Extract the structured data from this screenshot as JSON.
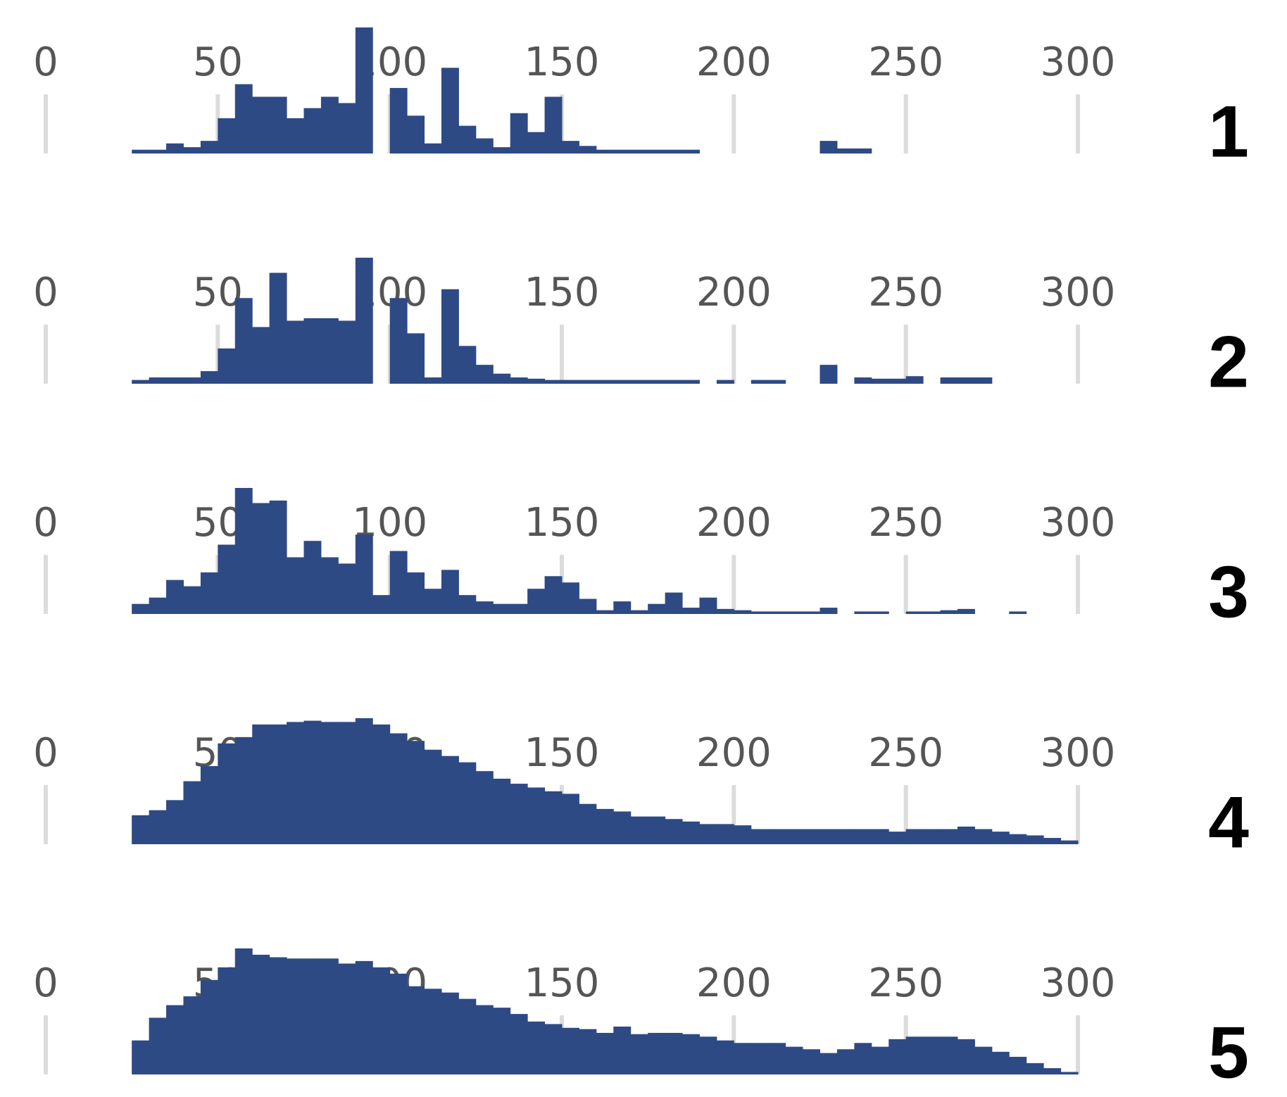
{
  "chart_data": [
    {
      "type": "histogram",
      "title": "1",
      "color": "#2e4a85",
      "grid": true,
      "bins": [
        25,
        30,
        35,
        40,
        45,
        50,
        55,
        60,
        65,
        70,
        75,
        80,
        85,
        90,
        95,
        100,
        105,
        110,
        115,
        120,
        125,
        130,
        135,
        140,
        145,
        150,
        155,
        160,
        165,
        170,
        175,
        180,
        185,
        190,
        195,
        200,
        205,
        210,
        215,
        220,
        225,
        230,
        235,
        240,
        245,
        250,
        255,
        260,
        265,
        270,
        275,
        280,
        285,
        290,
        295,
        300
      ],
      "values": [
        3,
        3,
        8,
        5,
        10,
        28,
        55,
        45,
        45,
        28,
        36,
        45,
        40,
        100,
        0,
        52,
        30,
        8,
        68,
        22,
        12,
        5,
        32,
        17,
        45,
        10,
        6,
        3,
        3,
        3,
        3,
        3,
        3,
        0,
        0,
        0,
        0,
        0,
        0,
        0,
        10,
        4,
        4,
        0,
        0,
        0,
        0,
        0,
        0,
        0,
        0,
        0,
        0,
        0,
        0
      ],
      "xlim": [
        0,
        300
      ],
      "xticks": [
        0,
        50,
        100,
        150,
        200,
        250,
        300
      ],
      "ylim": [
        0,
        100
      ]
    },
    {
      "type": "histogram",
      "title": "2",
      "color": "#2e4a85",
      "grid": true,
      "bins": [
        25,
        30,
        35,
        40,
        45,
        50,
        55,
        60,
        65,
        70,
        75,
        80,
        85,
        90,
        95,
        100,
        105,
        110,
        115,
        120,
        125,
        130,
        135,
        140,
        145,
        150,
        155,
        160,
        165,
        170,
        175,
        180,
        185,
        190,
        195,
        200,
        205,
        210,
        215,
        220,
        225,
        230,
        235,
        240,
        245,
        250,
        255,
        260,
        265,
        270,
        275,
        280,
        285,
        290,
        295,
        300
      ],
      "values": [
        3,
        5,
        5,
        5,
        10,
        28,
        68,
        45,
        88,
        50,
        52,
        52,
        50,
        100,
        0,
        68,
        40,
        5,
        75,
        30,
        15,
        8,
        5,
        4,
        3,
        3,
        3,
        3,
        3,
        3,
        3,
        3,
        3,
        0,
        3,
        0,
        3,
        3,
        0,
        0,
        15,
        0,
        5,
        4,
        4,
        6,
        0,
        5,
        5,
        5,
        0,
        0,
        0,
        0,
        0
      ],
      "xlim": [
        0,
        300
      ],
      "xticks": [
        0,
        50,
        100,
        150,
        200,
        250,
        300
      ],
      "ylim": [
        0,
        100
      ]
    },
    {
      "type": "histogram",
      "title": "3",
      "color": "#2e4a85",
      "grid": true,
      "bins": [
        25,
        30,
        35,
        40,
        45,
        50,
        55,
        60,
        65,
        70,
        75,
        80,
        85,
        90,
        95,
        100,
        105,
        110,
        115,
        120,
        125,
        130,
        135,
        140,
        145,
        150,
        155,
        160,
        165,
        170,
        175,
        180,
        185,
        190,
        195,
        200,
        205,
        210,
        215,
        220,
        225,
        230,
        235,
        240,
        245,
        250,
        255,
        260,
        265,
        270,
        275,
        280,
        285,
        290,
        295,
        300
      ],
      "values": [
        8,
        13,
        27,
        22,
        33,
        55,
        100,
        88,
        90,
        45,
        58,
        45,
        40,
        63,
        15,
        50,
        33,
        20,
        35,
        15,
        10,
        8,
        8,
        20,
        30,
        25,
        12,
        3,
        10,
        3,
        8,
        17,
        5,
        13,
        4,
        3,
        2,
        2,
        2,
        2,
        5,
        0,
        2,
        2,
        0,
        2,
        2,
        3,
        4,
        0,
        0,
        2,
        0,
        0,
        0
      ],
      "xlim": [
        0,
        300
      ],
      "xticks": [
        0,
        50,
        100,
        150,
        200,
        250,
        300
      ],
      "ylim": [
        0,
        100
      ]
    },
    {
      "type": "histogram",
      "title": "4",
      "color": "#2e4a85",
      "grid": true,
      "bins": [
        25,
        30,
        35,
        40,
        45,
        50,
        55,
        60,
        65,
        70,
        75,
        80,
        85,
        90,
        95,
        100,
        105,
        110,
        115,
        120,
        125,
        130,
        135,
        140,
        145,
        150,
        155,
        160,
        165,
        170,
        175,
        180,
        185,
        190,
        195,
        200,
        205,
        210,
        215,
        220,
        225,
        230,
        235,
        240,
        245,
        250,
        255,
        260,
        265,
        270,
        275,
        280,
        285,
        290,
        295,
        300
      ],
      "values": [
        23,
        27,
        35,
        50,
        62,
        80,
        85,
        95,
        95,
        97,
        98,
        97,
        97,
        100,
        95,
        88,
        82,
        75,
        70,
        65,
        58,
        52,
        48,
        45,
        42,
        40,
        32,
        28,
        26,
        22,
        22,
        20,
        18,
        16,
        16,
        15,
        12,
        12,
        12,
        12,
        12,
        12,
        12,
        12,
        10,
        12,
        12,
        12,
        14,
        12,
        10,
        8,
        7,
        5,
        3
      ],
      "xlim": [
        0,
        300
      ],
      "xticks": [
        0,
        50,
        100,
        150,
        200,
        250,
        300
      ],
      "ylim": [
        0,
        100
      ]
    },
    {
      "type": "histogram",
      "title": "5",
      "color": "#2e4a85",
      "grid": true,
      "bins": [
        25,
        30,
        35,
        40,
        45,
        50,
        55,
        60,
        65,
        70,
        75,
        80,
        85,
        90,
        95,
        100,
        105,
        110,
        115,
        120,
        125,
        130,
        135,
        140,
        145,
        150,
        155,
        160,
        165,
        170,
        175,
        180,
        185,
        190,
        195,
        200,
        205,
        210,
        215,
        220,
        225,
        230,
        235,
        240,
        245,
        250,
        255,
        260,
        265,
        270,
        275,
        280,
        285,
        290,
        295,
        300
      ],
      "values": [
        27,
        45,
        55,
        62,
        75,
        85,
        100,
        95,
        93,
        92,
        92,
        92,
        88,
        90,
        85,
        80,
        70,
        68,
        65,
        60,
        55,
        53,
        48,
        42,
        40,
        37,
        36,
        33,
        38,
        32,
        33,
        33,
        32,
        30,
        27,
        25,
        25,
        25,
        22,
        20,
        17,
        20,
        25,
        22,
        28,
        30,
        30,
        30,
        28,
        22,
        18,
        14,
        9,
        5,
        2
      ],
      "xlim": [
        0,
        300
      ],
      "xticks": [
        0,
        50,
        100,
        150,
        200,
        250,
        300
      ],
      "ylim": [
        0,
        100
      ]
    }
  ]
}
